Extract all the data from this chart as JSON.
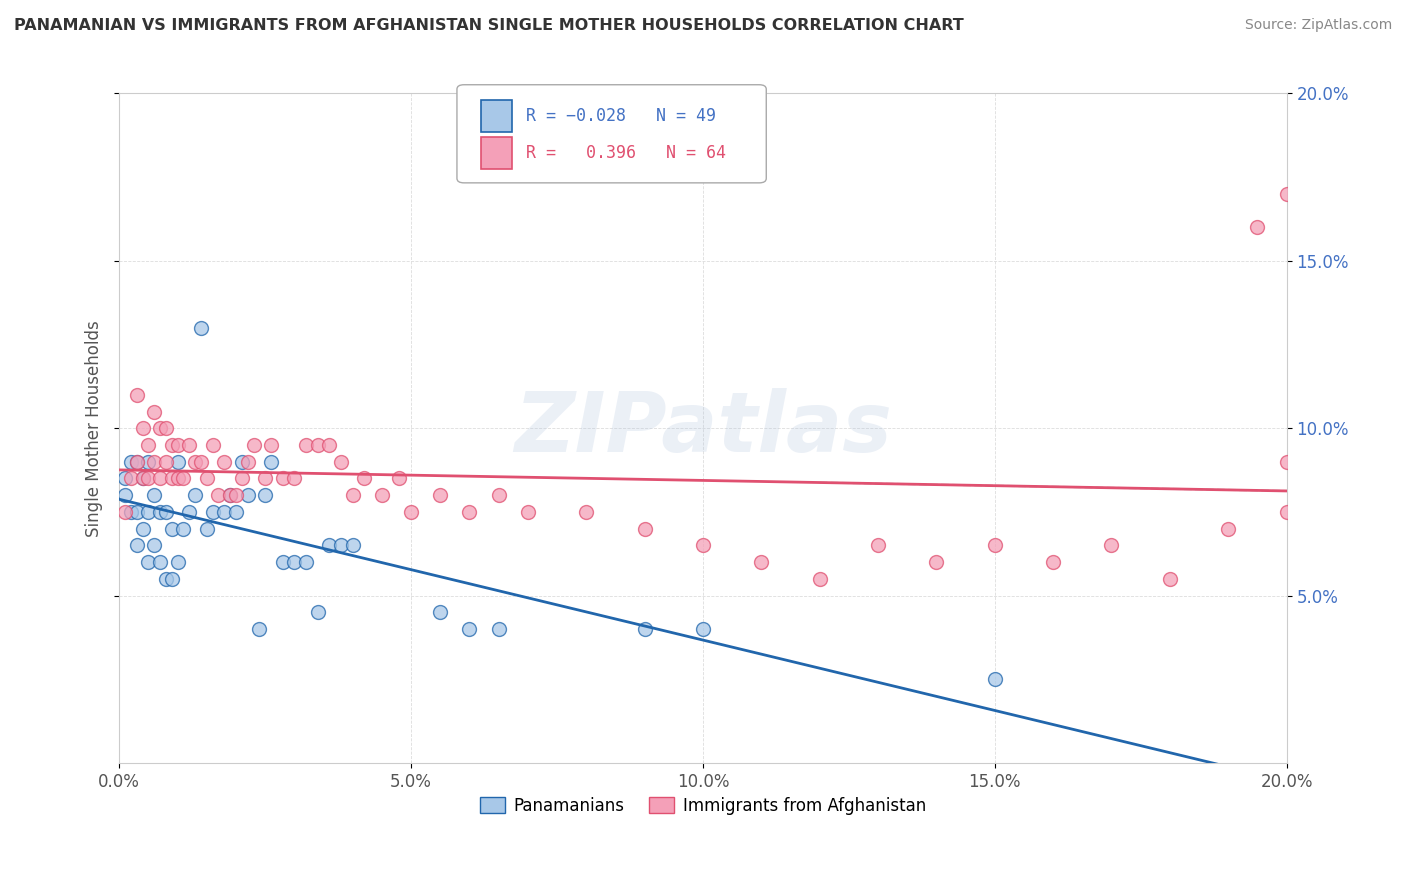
{
  "title": "PANAMANIAN VS IMMIGRANTS FROM AFGHANISTAN SINGLE MOTHER HOUSEHOLDS CORRELATION CHART",
  "source": "Source: ZipAtlas.com",
  "ylabel": "Single Mother Households",
  "xlim": [
    0.0,
    0.2
  ],
  "ylim": [
    0.0,
    0.2
  ],
  "xticks": [
    0.0,
    0.05,
    0.1,
    0.15,
    0.2
  ],
  "yticks": [
    0.05,
    0.1,
    0.15,
    0.2
  ],
  "xticklabels": [
    "0.0%",
    "5.0%",
    "10.0%",
    "15.0%",
    "20.0%"
  ],
  "yticklabels_right": [
    "5.0%",
    "10.0%",
    "15.0%",
    "20.0%"
  ],
  "watermark": "ZIPatlas",
  "color_blue": "#a8c8e8",
  "color_pink": "#f4a0b8",
  "color_blue_line": "#2166ac",
  "color_pink_line": "#e05070",
  "color_dashed": "#cccccc",
  "series1_label": "Panamanians",
  "series2_label": "Immigrants from Afghanistan",
  "pan_x": [
    0.001,
    0.001,
    0.002,
    0.002,
    0.003,
    0.003,
    0.003,
    0.004,
    0.004,
    0.005,
    0.005,
    0.005,
    0.006,
    0.006,
    0.007,
    0.007,
    0.008,
    0.008,
    0.009,
    0.009,
    0.01,
    0.01,
    0.011,
    0.012,
    0.013,
    0.014,
    0.015,
    0.016,
    0.018,
    0.019,
    0.02,
    0.021,
    0.022,
    0.024,
    0.025,
    0.026,
    0.028,
    0.03,
    0.032,
    0.034,
    0.036,
    0.038,
    0.04,
    0.055,
    0.06,
    0.065,
    0.09,
    0.1,
    0.15
  ],
  "pan_y": [
    0.08,
    0.085,
    0.075,
    0.09,
    0.065,
    0.075,
    0.09,
    0.07,
    0.085,
    0.06,
    0.075,
    0.09,
    0.065,
    0.08,
    0.06,
    0.075,
    0.055,
    0.075,
    0.055,
    0.07,
    0.06,
    0.09,
    0.07,
    0.075,
    0.08,
    0.13,
    0.07,
    0.075,
    0.075,
    0.08,
    0.075,
    0.09,
    0.08,
    0.04,
    0.08,
    0.09,
    0.06,
    0.06,
    0.06,
    0.045,
    0.065,
    0.065,
    0.065,
    0.045,
    0.04,
    0.04,
    0.04,
    0.04,
    0.025
  ],
  "afg_x": [
    0.001,
    0.002,
    0.003,
    0.003,
    0.004,
    0.004,
    0.005,
    0.005,
    0.006,
    0.006,
    0.007,
    0.007,
    0.008,
    0.008,
    0.009,
    0.009,
    0.01,
    0.01,
    0.011,
    0.012,
    0.013,
    0.014,
    0.015,
    0.016,
    0.017,
    0.018,
    0.019,
    0.02,
    0.021,
    0.022,
    0.023,
    0.025,
    0.026,
    0.028,
    0.03,
    0.032,
    0.034,
    0.036,
    0.038,
    0.04,
    0.042,
    0.045,
    0.048,
    0.05,
    0.055,
    0.06,
    0.065,
    0.07,
    0.08,
    0.09,
    0.1,
    0.11,
    0.12,
    0.13,
    0.14,
    0.15,
    0.16,
    0.17,
    0.18,
    0.19,
    0.195,
    0.2,
    0.2,
    0.2
  ],
  "afg_y": [
    0.075,
    0.085,
    0.09,
    0.11,
    0.085,
    0.1,
    0.085,
    0.095,
    0.09,
    0.105,
    0.085,
    0.1,
    0.09,
    0.1,
    0.085,
    0.095,
    0.085,
    0.095,
    0.085,
    0.095,
    0.09,
    0.09,
    0.085,
    0.095,
    0.08,
    0.09,
    0.08,
    0.08,
    0.085,
    0.09,
    0.095,
    0.085,
    0.095,
    0.085,
    0.085,
    0.095,
    0.095,
    0.095,
    0.09,
    0.08,
    0.085,
    0.08,
    0.085,
    0.075,
    0.08,
    0.075,
    0.08,
    0.075,
    0.075,
    0.07,
    0.065,
    0.06,
    0.055,
    0.065,
    0.06,
    0.065,
    0.06,
    0.065,
    0.055,
    0.07,
    0.16,
    0.075,
    0.09,
    0.17
  ]
}
